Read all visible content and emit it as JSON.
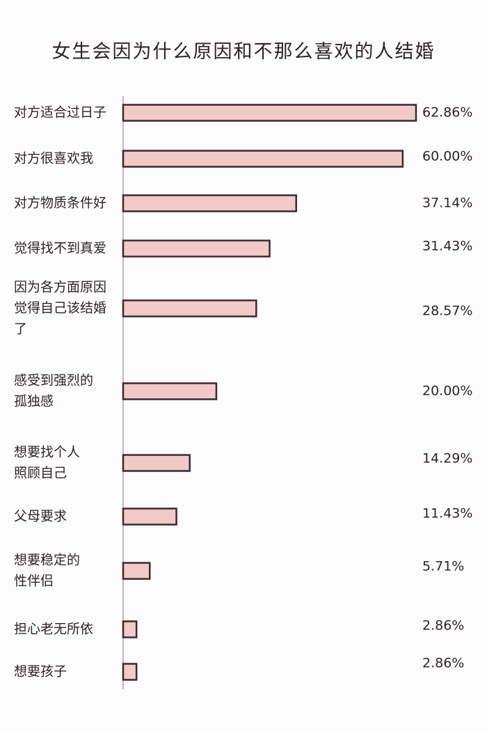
{
  "chart_data": {
    "type": "bar",
    "orientation": "horizontal",
    "title": "女生会因为什么原因和不那么喜欢的人结婚",
    "categories": [
      [
        "对方适合过日子"
      ],
      [
        "对方很喜欢我"
      ],
      [
        "对方物质条件好"
      ],
      [
        "觉得找不到真爱"
      ],
      [
        "因为各方面原因",
        "觉得自己该结婚",
        "了"
      ],
      [
        "感受到强烈的",
        "孤独感"
      ],
      [
        "想要找个人",
        "照顾自己"
      ],
      [
        "父母要求"
      ],
      [
        "想要稳定的",
        "性伴侣"
      ],
      [
        "担心老无所依"
      ],
      [
        "想要孩子"
      ]
    ],
    "values": [
      62.86,
      60.0,
      37.14,
      31.43,
      28.57,
      20.0,
      14.29,
      11.43,
      5.71,
      2.86,
      2.86
    ],
    "value_labels": [
      "62.86%",
      "60.00%",
      "37.14%",
      "31.43%",
      "28.57%",
      "20.00%",
      "14.29%",
      "11.43%",
      "5.71%",
      "2.86%",
      "2.86%"
    ],
    "xlim": [
      0,
      62.86
    ],
    "grid": false,
    "legend": "none",
    "bar_color": "#f2c9c9",
    "bar_outline_color": "#3a2a2a"
  }
}
